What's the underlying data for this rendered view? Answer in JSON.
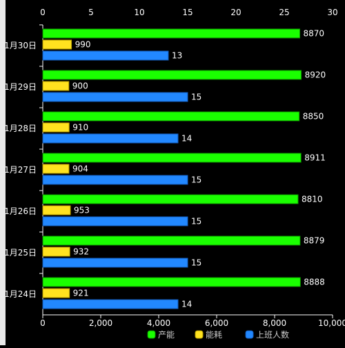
{
  "chart_data": {
    "type": "bar",
    "orientation": "horizontal",
    "categories": [
      "1月30日",
      "1月29日",
      "1月28日",
      "1月27日",
      "1月26日",
      "1月25日",
      "1月24日"
    ],
    "series": [
      {
        "name": "产能",
        "axis": "bottom",
        "values": [
          8870,
          8920,
          8850,
          8911,
          8810,
          8879,
          8888
        ]
      },
      {
        "name": "能耗",
        "axis": "bottom",
        "values": [
          990,
          900,
          910,
          904,
          953,
          932,
          921
        ]
      },
      {
        "name": "上班人数",
        "axis": "top",
        "values": [
          13,
          15,
          14,
          15,
          15,
          15,
          14
        ]
      }
    ],
    "x_top": {
      "min": 0,
      "max": 30,
      "ticks": [
        "0",
        "5",
        "10",
        "15",
        "20",
        "25",
        "30"
      ]
    },
    "x_bottom": {
      "min": 0,
      "max": 10000,
      "ticks": [
        "0",
        "2,000",
        "4,000",
        "6,000",
        "8,000",
        "10,000"
      ]
    },
    "grid": false,
    "legend_position": "bottom-right",
    "data_labels": true
  },
  "colors": {
    "background": "#000000",
    "text": "#ffffff",
    "axis": "#ffffff",
    "legend_text": "#cccccc",
    "series": [
      "#1aff00",
      "#ffe21f",
      "#2288ff"
    ],
    "borders": [
      "#0d8c00",
      "#b39c00",
      "#135ab8"
    ]
  }
}
